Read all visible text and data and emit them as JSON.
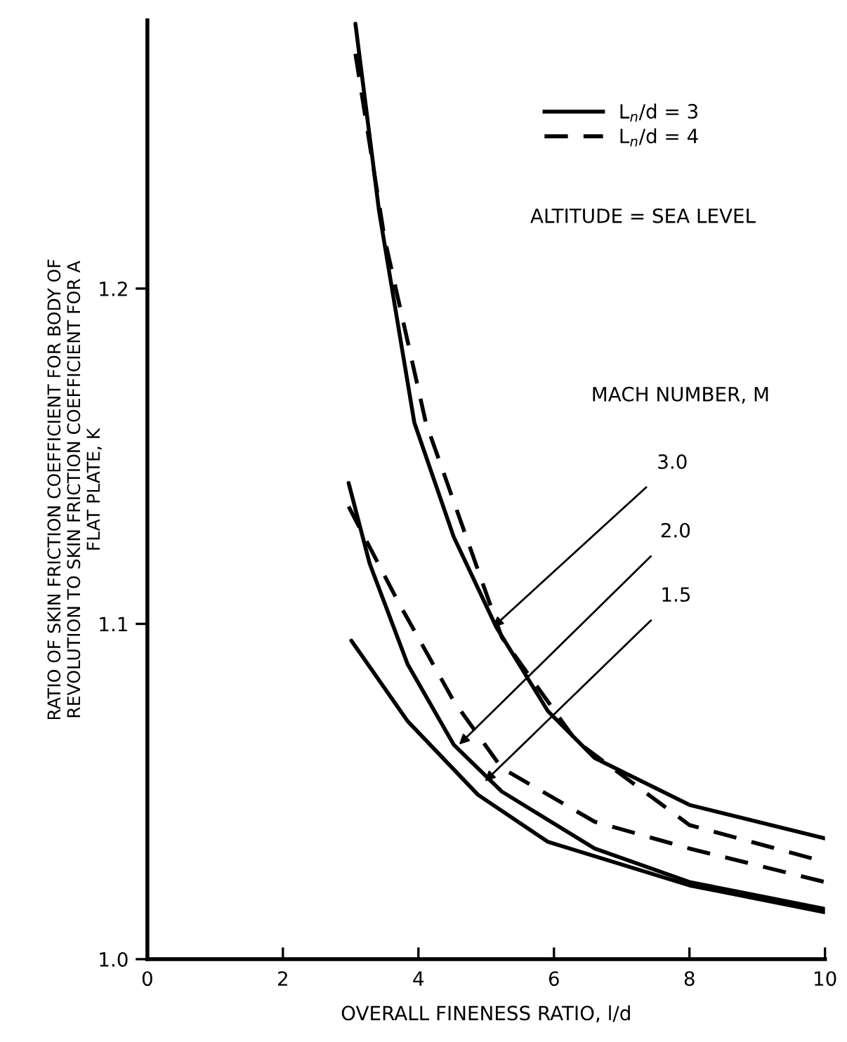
{
  "chart_data": {
    "type": "line",
    "xlabel": "OVERALL FINENESS RATIO, l/d",
    "ylabel": "RATIO OF SKIN FRICTION COEFFICIENT FOR BODY OF\nREVOLUTION TO SKIN FRICTION COEFFICIENT FOR A\nFLAT PLATE, K",
    "xlim": [
      0,
      10
    ],
    "ylim": [
      1.0,
      1.28
    ],
    "xticks": [
      0,
      2,
      4,
      6,
      8,
      10
    ],
    "yticks": [
      {
        "value": 1.0,
        "label": "1.0"
      },
      {
        "value": 1.1,
        "label": "1.1"
      },
      {
        "value": 1.2,
        "label": "1.2"
      }
    ],
    "grid": false,
    "legend": "top right",
    "marker": "none",
    "series": [
      {
        "name": "L$_{n}$/d = 3",
        "color": "#000000",
        "line_style": "solid",
        "x": [
          3.07,
          3.42,
          3.94,
          4.52,
          5.15,
          5.91,
          6.6,
          8.0,
          10.0
        ],
        "values": [
          1.279,
          1.223,
          1.16,
          1.126,
          1.099,
          1.074,
          1.06,
          1.046,
          1.036
        ]
      },
      {
        "name": "L$_{n}$/d = 4",
        "color": "#000000",
        "line_style": "dashed",
        "x": [
          3.07,
          3.5,
          4.11,
          5.23,
          6.33,
          8.0,
          10.0
        ],
        "values": [
          1.27,
          1.215,
          1.16,
          1.096,
          1.065,
          1.04,
          1.029
        ]
      },
      {
        "color": "#000000",
        "line_style": "solid",
        "x": [
          2.97,
          3.28,
          3.84,
          4.52,
          5.23,
          6.6,
          8.0,
          10.0
        ],
        "values": [
          1.142,
          1.118,
          1.088,
          1.064,
          1.05,
          1.033,
          1.023,
          1.015
        ]
      },
      {
        "color": "#000000",
        "line_style": "dashed",
        "x": [
          2.97,
          3.69,
          4.52,
          5.23,
          6.6,
          8.0,
          10.0
        ],
        "values": [
          1.135,
          1.107,
          1.077,
          1.057,
          1.041,
          1.033,
          1.023
        ]
      },
      {
        "color": "#000000",
        "line_style": "solid",
        "x": [
          3.01,
          3.84,
          4.88,
          5.91,
          8.0,
          10.0
        ],
        "values": [
          1.095,
          1.071,
          1.049,
          1.035,
          1.022,
          1.014
        ]
      }
    ],
    "annotations": [
      "ALTITUDE = SEA LEVEL",
      "MACH NUMBER, M",
      {
        "text": "3.0",
        "x": 5.1,
        "y": 1.099
      },
      {
        "text": "2.0",
        "x": 4.6,
        "y": 1.064
      },
      {
        "text": "1.5",
        "x": 4.98,
        "y": 1.053
      }
    ]
  }
}
